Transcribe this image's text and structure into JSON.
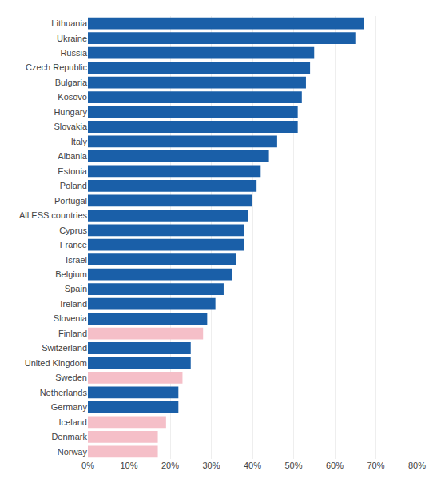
{
  "chart_data": {
    "type": "bar",
    "orientation": "horizontal",
    "categories": [
      "Lithuania",
      "Ukraine",
      "Russia",
      "Czech Republic",
      "Bulgaria",
      "Kosovo",
      "Hungary",
      "Slovakia",
      "Italy",
      "Albania",
      "Estonia",
      "Poland",
      "Portugal",
      "All ESS countries",
      "Cyprus",
      "France",
      "Israel",
      "Belgium",
      "Spain",
      "Ireland",
      "Slovenia",
      "Finland",
      "Switzerland",
      "United Kingdom",
      "Sweden",
      "Netherlands",
      "Germany",
      "Iceland",
      "Denmark",
      "Norway"
    ],
    "values": [
      67,
      65,
      55,
      54,
      53,
      52,
      51,
      51,
      46,
      44,
      42,
      41,
      40,
      39,
      38,
      38,
      36,
      35,
      33,
      31,
      29,
      28,
      25,
      25,
      23,
      22,
      22,
      19,
      17,
      17
    ],
    "colors": [
      "#1a5fa8",
      "#1a5fa8",
      "#1a5fa8",
      "#1a5fa8",
      "#1a5fa8",
      "#1a5fa8",
      "#1a5fa8",
      "#1a5fa8",
      "#1a5fa8",
      "#1a5fa8",
      "#1a5fa8",
      "#1a5fa8",
      "#1a5fa8",
      "#1a5fa8",
      "#1a5fa8",
      "#1a5fa8",
      "#1a5fa8",
      "#1a5fa8",
      "#1a5fa8",
      "#1a5fa8",
      "#1a5fa8",
      "#f5bfc8",
      "#1a5fa8",
      "#1a5fa8",
      "#f5bfc8",
      "#1a5fa8",
      "#1a5fa8",
      "#f5bfc8",
      "#f5bfc8",
      "#f5bfc8"
    ],
    "xlim": [
      0,
      80
    ],
    "xticks": [
      {
        "value": 0,
        "label": "0%"
      },
      {
        "value": 10,
        "label": "10%"
      },
      {
        "value": 20,
        "label": "20%"
      },
      {
        "value": 30,
        "label": "30%"
      },
      {
        "value": 40,
        "label": "40%"
      },
      {
        "value": 50,
        "label": "50%"
      },
      {
        "value": 60,
        "label": "60%"
      },
      {
        "value": 70,
        "label": "70%"
      },
      {
        "value": 80,
        "label": "80%"
      }
    ],
    "grid": true
  }
}
